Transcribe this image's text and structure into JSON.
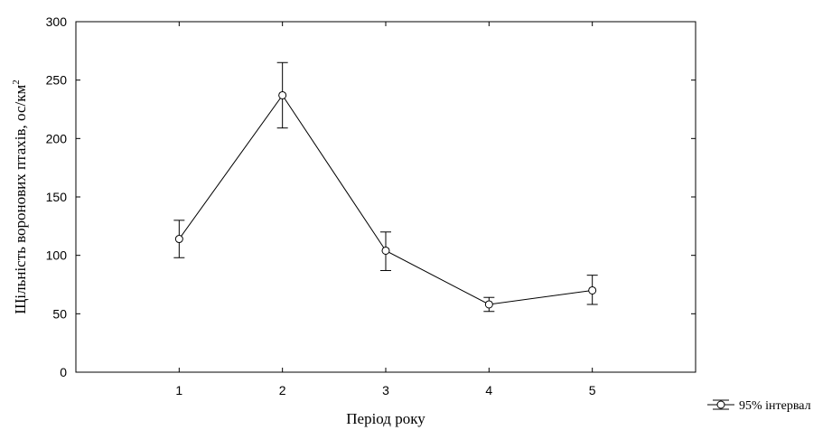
{
  "chart_data": {
    "type": "line",
    "xlabel": "Період року",
    "ylabel_main": "Щільність воронових птахів, ос/км",
    "ylabel_sup": "2",
    "x": [
      1,
      2,
      3,
      4,
      5
    ],
    "xlim": [
      0,
      6
    ],
    "ylim": [
      0,
      300
    ],
    "xticks": [
      1,
      2,
      3,
      4,
      5
    ],
    "yticks": [
      0,
      50,
      100,
      150,
      200,
      250,
      300
    ],
    "series": [
      {
        "values": [
          114,
          237,
          104,
          58,
          70
        ],
        "err_low": [
          98,
          209,
          87,
          52,
          58
        ],
        "err_high": [
          130,
          265,
          120,
          64,
          83
        ],
        "marker": "open-circle"
      }
    ],
    "legend": {
      "label": "95% інтервал",
      "position": "bottom-right outside"
    },
    "grid": false
  }
}
